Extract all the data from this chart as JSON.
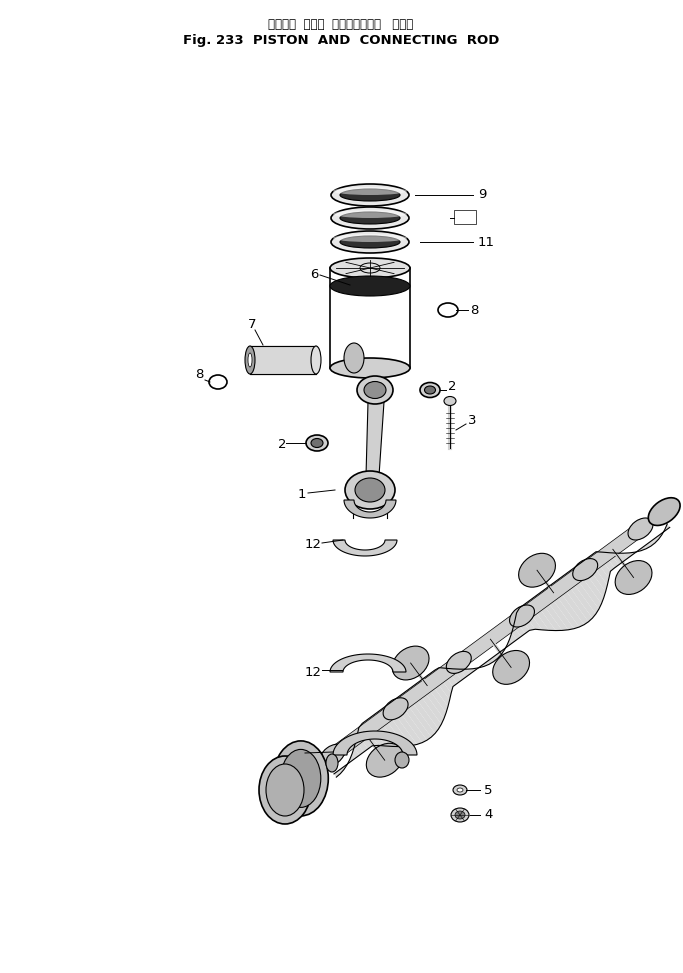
{
  "title_japanese": "ピストン  および  コネクティング   ロッド",
  "title_english": "Fig. 233  PISTON  AND  CONNECTING  ROD",
  "bg_color": "#ffffff",
  "line_color": "#000000",
  "fig_width": 6.83,
  "fig_height": 9.73
}
